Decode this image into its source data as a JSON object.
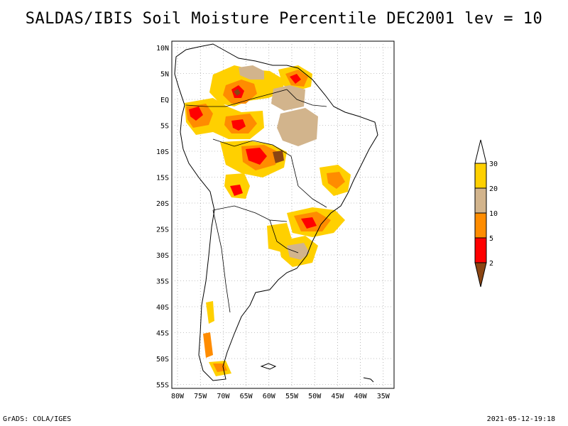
{
  "title": "SALDAS/IBIS Soil Moisture Percentile DEC2001 lev = 10",
  "footer": {
    "left": "GrADS: COLA/IGES",
    "right": "2021-05-12-19:18"
  },
  "map": {
    "region": "South America",
    "lat_labels": [
      "10N",
      "5N",
      "EQ",
      "5S",
      "10S",
      "15S",
      "20S",
      "25S",
      "30S",
      "35S",
      "40S",
      "45S",
      "50S",
      "55S"
    ],
    "lon_labels": [
      "80W",
      "75W",
      "70W",
      "65W",
      "60W",
      "55W",
      "50W",
      "45W",
      "40W",
      "35W"
    ],
    "grid": "dotted"
  },
  "colorbar": {
    "labels": [
      "30",
      "20",
      "10",
      "5",
      "2"
    ],
    "colors": {
      "above_30": "#ffffff",
      "20_30": "#ffd000",
      "10_20": "#d2b48c",
      "5_10": "#ff8c00",
      "2_5": "#ff0000",
      "below_2": "#8b4513"
    }
  }
}
